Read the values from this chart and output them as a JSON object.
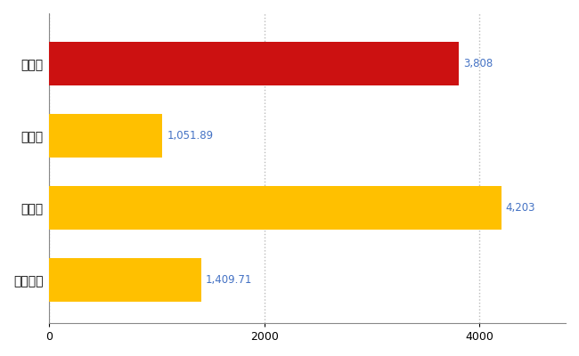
{
  "categories": [
    "水戸市",
    "県平均",
    "県最大",
    "全国平均"
  ],
  "values": [
    3808,
    1051.89,
    4203,
    1409.71
  ],
  "colors": [
    "#CC1111",
    "#FFC000",
    "#FFC000",
    "#FFC000"
  ],
  "labels": [
    "3,808",
    "1,051.89",
    "4,203",
    "1,409.71"
  ],
  "xlim": [
    0,
    4800
  ],
  "xticks": [
    0,
    2000,
    4000
  ],
  "background_color": "#FFFFFF",
  "grid_color": "#BBBBBB",
  "label_color": "#4472C4",
  "figsize": [
    6.5,
    4.0
  ],
  "dpi": 100,
  "bar_height": 0.6
}
